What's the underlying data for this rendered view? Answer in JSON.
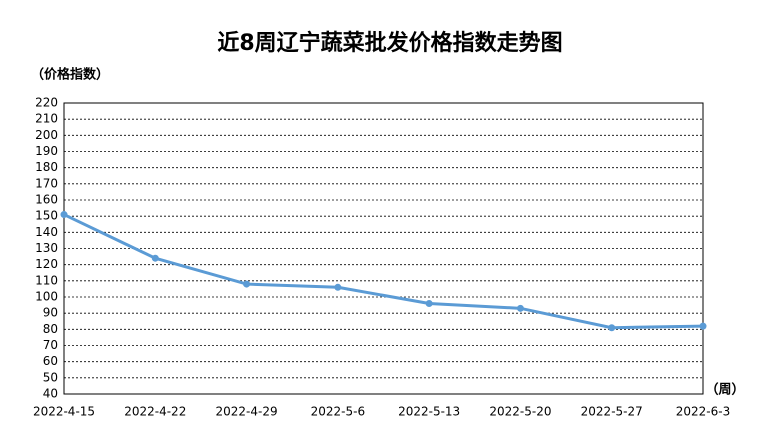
{
  "chart_data": {
    "type": "line",
    "title": "近8周辽宁蔬菜批发价格指数走势图",
    "y_label": "（价格指数）",
    "x_label": "（周）",
    "categories": [
      "2022-4-15",
      "2022-4-22",
      "2022-4-29",
      "2022-5-6",
      "2022-5-13",
      "2022-5-20",
      "2022-5-27",
      "2022-6-3"
    ],
    "values": [
      151,
      124,
      108,
      106,
      96,
      93,
      81,
      82
    ],
    "color": "#5b9bd5",
    "ylim": [
      40,
      220
    ],
    "yticks": [
      40,
      50,
      60,
      70,
      80,
      90,
      100,
      110,
      120,
      130,
      140,
      150,
      160,
      170,
      180,
      190,
      200,
      210,
      220
    ],
    "grid": true
  }
}
